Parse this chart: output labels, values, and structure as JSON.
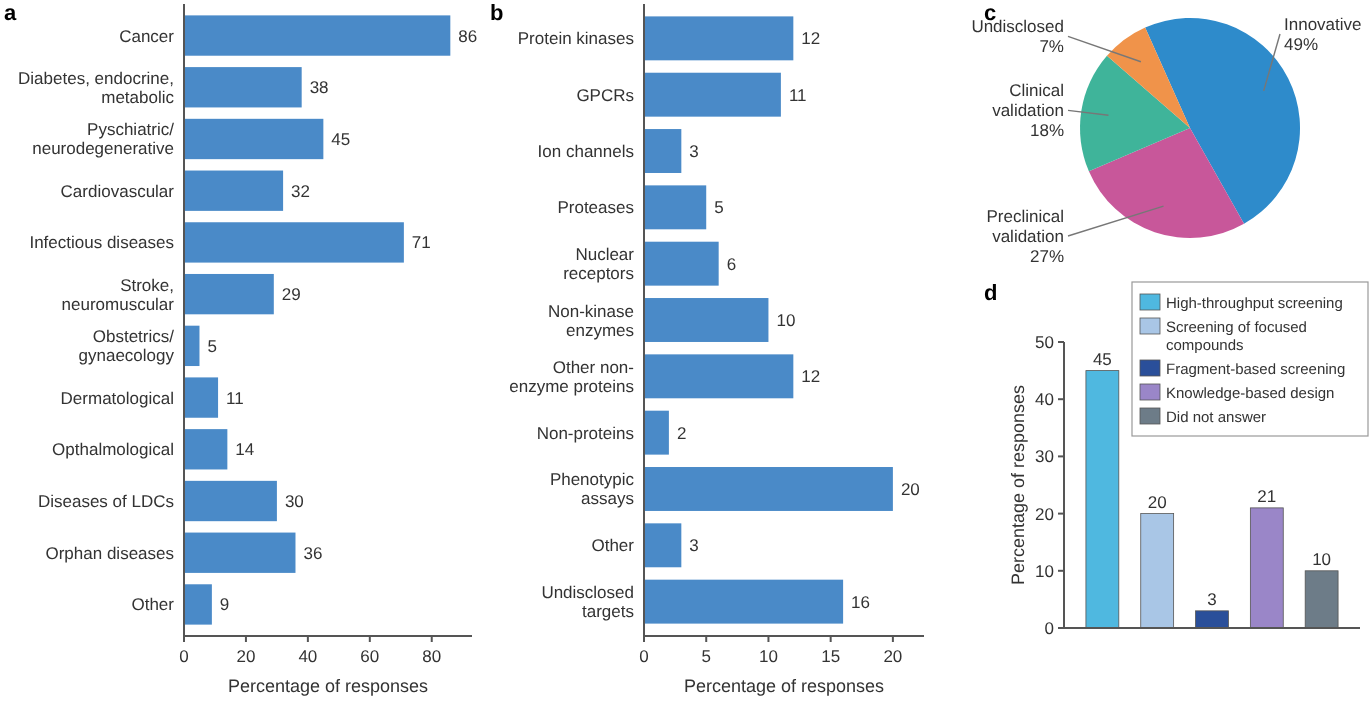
{
  "chart_data": [
    {
      "type": "bar",
      "title": "a",
      "orientation": "horizontal",
      "categories": [
        "Cancer",
        "Diabetes, endocrine, metabolic",
        "Pyschiatric/neurodegenerative",
        "Cardiovascular",
        "Infectious diseases",
        "Stroke, neuromuscular",
        "Obstetrics/gynaecology",
        "Dermatological",
        "Opthalmological",
        "Diseases of LDCs",
        "Orphan diseases",
        "Other"
      ],
      "values": [
        86,
        38,
        45,
        32,
        71,
        29,
        5,
        11,
        14,
        30,
        36,
        9
      ],
      "color": "#4a8ac8",
      "xlim": [
        0,
        93
      ],
      "xticks": [
        0,
        20,
        40,
        60,
        80
      ],
      "xlabel": "Percentage of responses",
      "data_labels": true,
      "grid": false
    },
    {
      "type": "bar",
      "title": "b",
      "orientation": "horizontal",
      "categories": [
        "Protein kinases",
        "GPCRs",
        "Ion channels",
        "Proteases",
        "Nuclear receptors",
        "Non-kinase enzymes",
        "Other non-enzyme proteins",
        "Non-proteins",
        "Phenotypic assays",
        "Other",
        "Undisclosed targets"
      ],
      "values": [
        12,
        11,
        3,
        5,
        6,
        10,
        12,
        2,
        20,
        3,
        16
      ],
      "color": "#4a8ac8",
      "xlim": [
        0,
        22.5
      ],
      "xticks": [
        0,
        5,
        10,
        15,
        20
      ],
      "xlabel": "Percentage of responses",
      "data_labels": true,
      "grid": false
    },
    {
      "type": "pie",
      "title": "c",
      "categories": [
        "Innovative",
        "Preclinical validation",
        "Clinical validation",
        "Undisclosed"
      ],
      "values": [
        49,
        27,
        18,
        7
      ],
      "value_labels": [
        "49%",
        "27%",
        "18%",
        "7%"
      ],
      "colors": [
        "#2e8bcb",
        "#c8579a",
        "#3fb49a",
        "#f0934a"
      ]
    },
    {
      "type": "bar",
      "title": "d",
      "categories": [
        null,
        null,
        null,
        null,
        null
      ],
      "ylabel": "Percentage of responses",
      "ylim": [
        0,
        50
      ],
      "yticks": [
        0,
        10,
        20,
        30,
        40,
        50
      ],
      "data_labels": true,
      "grid": false,
      "legend": "top right",
      "series": [
        {
          "name": "High-throughput screening",
          "color": "#4fb8e0",
          "values": [
            45,
            null,
            null,
            null,
            null
          ]
        },
        {
          "name": "Screening of focused compounds",
          "color": "#a9c6e6",
          "values": [
            null,
            20,
            null,
            null,
            null
          ]
        },
        {
          "name": "Fragment-based screening",
          "color": "#2a4f9a",
          "values": [
            null,
            null,
            3,
            null,
            null
          ]
        },
        {
          "name": "Knowledge-based design",
          "color": "#9a86c8",
          "values": [
            null,
            null,
            null,
            21,
            null
          ]
        },
        {
          "name": "Did not answer",
          "color": "#6d7c88",
          "values": [
            null,
            null,
            null,
            null,
            10
          ]
        }
      ]
    }
  ]
}
